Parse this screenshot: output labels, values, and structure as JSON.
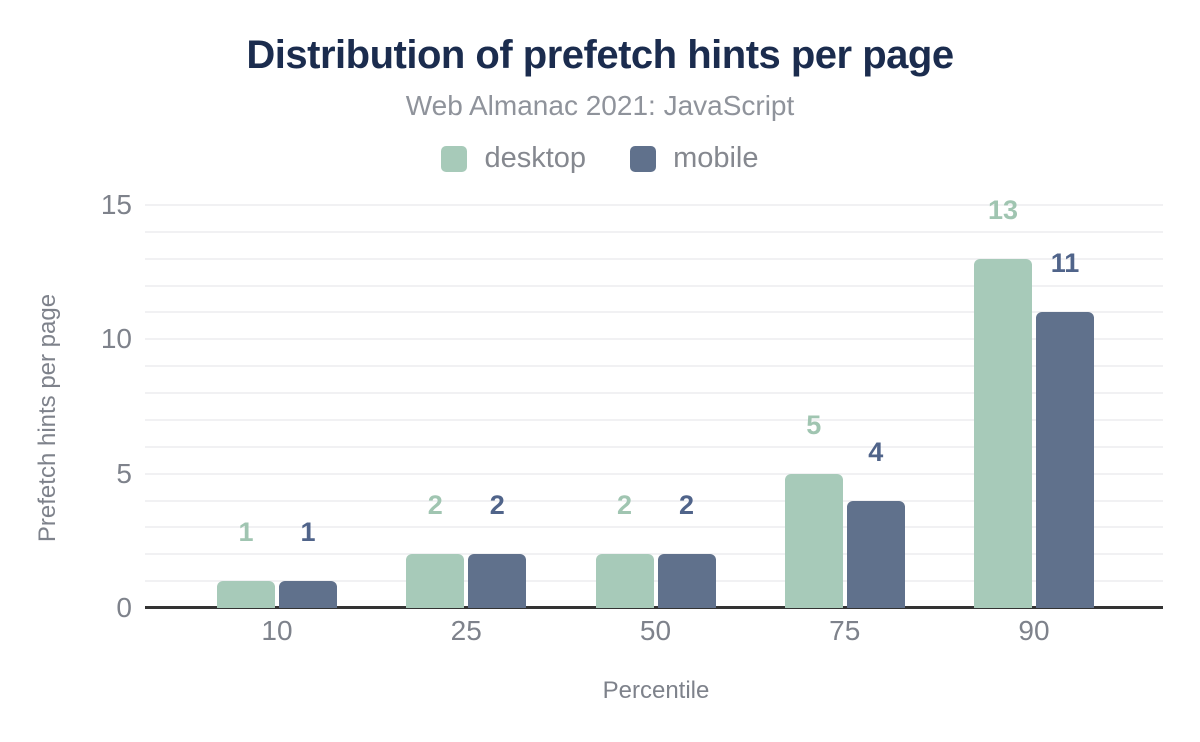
{
  "chart_data": {
    "type": "bar",
    "title": "Distribution of prefetch hints per page",
    "subtitle": "Web Almanac 2021: JavaScript",
    "xlabel": "Percentile",
    "ylabel": "Prefetch hints per page",
    "categories": [
      "10",
      "25",
      "50",
      "75",
      "90"
    ],
    "series": [
      {
        "name": "desktop",
        "values": [
          1,
          2,
          2,
          5,
          13
        ],
        "color": "#a7cab9",
        "label_color": "#a0c5b1"
      },
      {
        "name": "mobile",
        "values": [
          1,
          2,
          2,
          4,
          11
        ],
        "color": "#60718c",
        "label_color": "#50648a"
      }
    ],
    "y_ticks": [
      0,
      5,
      10,
      15
    ],
    "ylim": [
      0,
      15
    ],
    "grid": "horizontal, minor line every 1 unit",
    "legend_position": "top-center",
    "colors": {
      "title": "#1b2c4e",
      "subtitle": "#8f939b",
      "axis_text": "#7e828b",
      "gridline": "#f1f1f3",
      "axis_line": "#333333",
      "background": "#ffffff"
    }
  }
}
